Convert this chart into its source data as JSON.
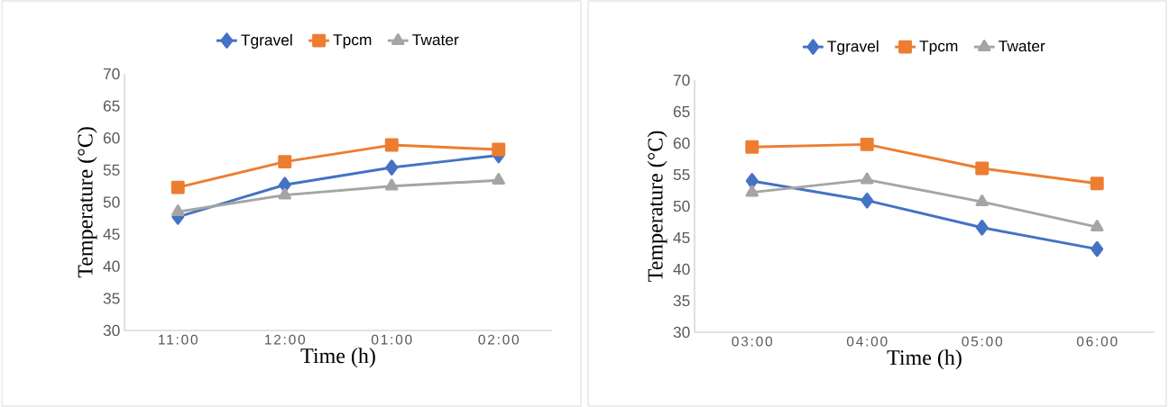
{
  "chart_data": [
    {
      "type": "line",
      "categories": [
        "11:00",
        "12:00",
        "01:00",
        "02:00"
      ],
      "xlabel": "Time (h)",
      "ylabel": "Temperature (°C)",
      "ylim": [
        30,
        70
      ],
      "yticks": [
        30,
        35,
        40,
        45,
        50,
        55,
        60,
        65,
        70
      ],
      "legend": "top",
      "grid": false,
      "series": [
        {
          "name": "Tgravel",
          "color": "#4472c4",
          "marker": "diamond",
          "values": [
            47.7,
            52.7,
            55.4,
            57.3
          ]
        },
        {
          "name": "Tpcm",
          "color": "#ed7d31",
          "marker": "square",
          "values": [
            52.3,
            56.3,
            58.9,
            58.2
          ]
        },
        {
          "name": "Twater",
          "color": "#a5a5a5",
          "marker": "triangle",
          "values": [
            48.5,
            51.1,
            52.5,
            53.4
          ]
        }
      ]
    },
    {
      "type": "line",
      "categories": [
        "03:00",
        "04:00",
        "05:00",
        "06:00"
      ],
      "xlabel": "Time (h)",
      "ylabel": "Temperature (°C)",
      "ylim": [
        30,
        70
      ],
      "yticks": [
        30,
        35,
        40,
        45,
        50,
        55,
        60,
        65,
        70
      ],
      "legend": "top",
      "grid": false,
      "series": [
        {
          "name": "Tgravel",
          "color": "#4472c4",
          "marker": "diamond",
          "values": [
            54.0,
            50.9,
            46.6,
            43.2
          ]
        },
        {
          "name": "Tpcm",
          "color": "#ed7d31",
          "marker": "square",
          "values": [
            59.4,
            59.8,
            56.0,
            53.6
          ]
        },
        {
          "name": "Twater",
          "color": "#a5a5a5",
          "marker": "triangle",
          "values": [
            52.2,
            54.2,
            50.7,
            46.7
          ]
        }
      ]
    }
  ]
}
